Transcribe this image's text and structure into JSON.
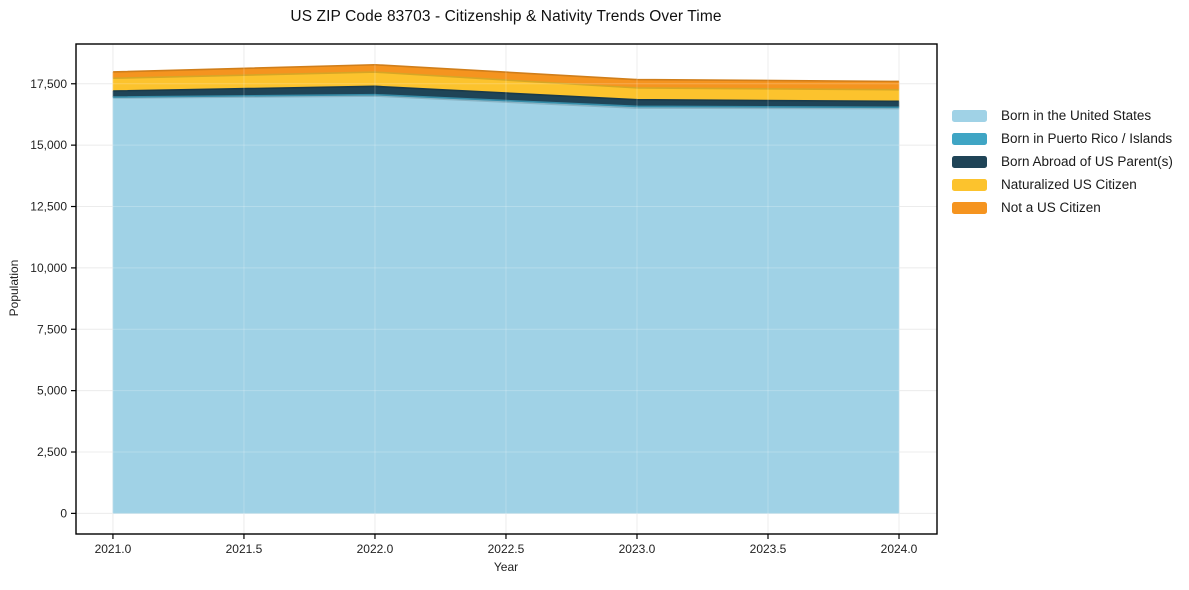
{
  "chart_data": {
    "type": "area",
    "stacked": true,
    "title": "US ZIP Code 83703 - Citizenship & Nativity Trends Over Time",
    "xlabel": "Year",
    "ylabel": "Population",
    "x": [
      2021,
      2022,
      2023,
      2024
    ],
    "series": [
      {
        "name": "Born in the United States",
        "color": "#a0d2e6",
        "values": [
          16920,
          17000,
          16510,
          16490
        ]
      },
      {
        "name": "Born in Puerto Rico / Islands",
        "color": "#3fa5c4",
        "values": [
          40,
          55,
          70,
          50
        ]
      },
      {
        "name": "Born Abroad of US Parent(s)",
        "color": "#1f4457",
        "values": [
          245,
          340,
          270,
          245
        ]
      },
      {
        "name": "Naturalized US Citizen",
        "color": "#fcc32d",
        "values": [
          520,
          580,
          480,
          470
        ]
      },
      {
        "name": "Not a US Citizen",
        "color": "#f5941f",
        "values": [
          255,
          300,
          340,
          340
        ]
      }
    ],
    "xlim": [
      2020.859,
      2024.145
    ],
    "ylim": [
      -840,
      19120
    ],
    "xticks": [
      2021.0,
      2021.5,
      2022.0,
      2022.5,
      2023.0,
      2023.5,
      2024.0
    ],
    "yticks": [
      0,
      2500,
      5000,
      7500,
      10000,
      12500,
      15000,
      17500
    ],
    "grid": true,
    "legend_position": "right",
    "axis_color": "#000000",
    "grid_color": "#e7e7e7",
    "tick_label_color": "#222222"
  }
}
